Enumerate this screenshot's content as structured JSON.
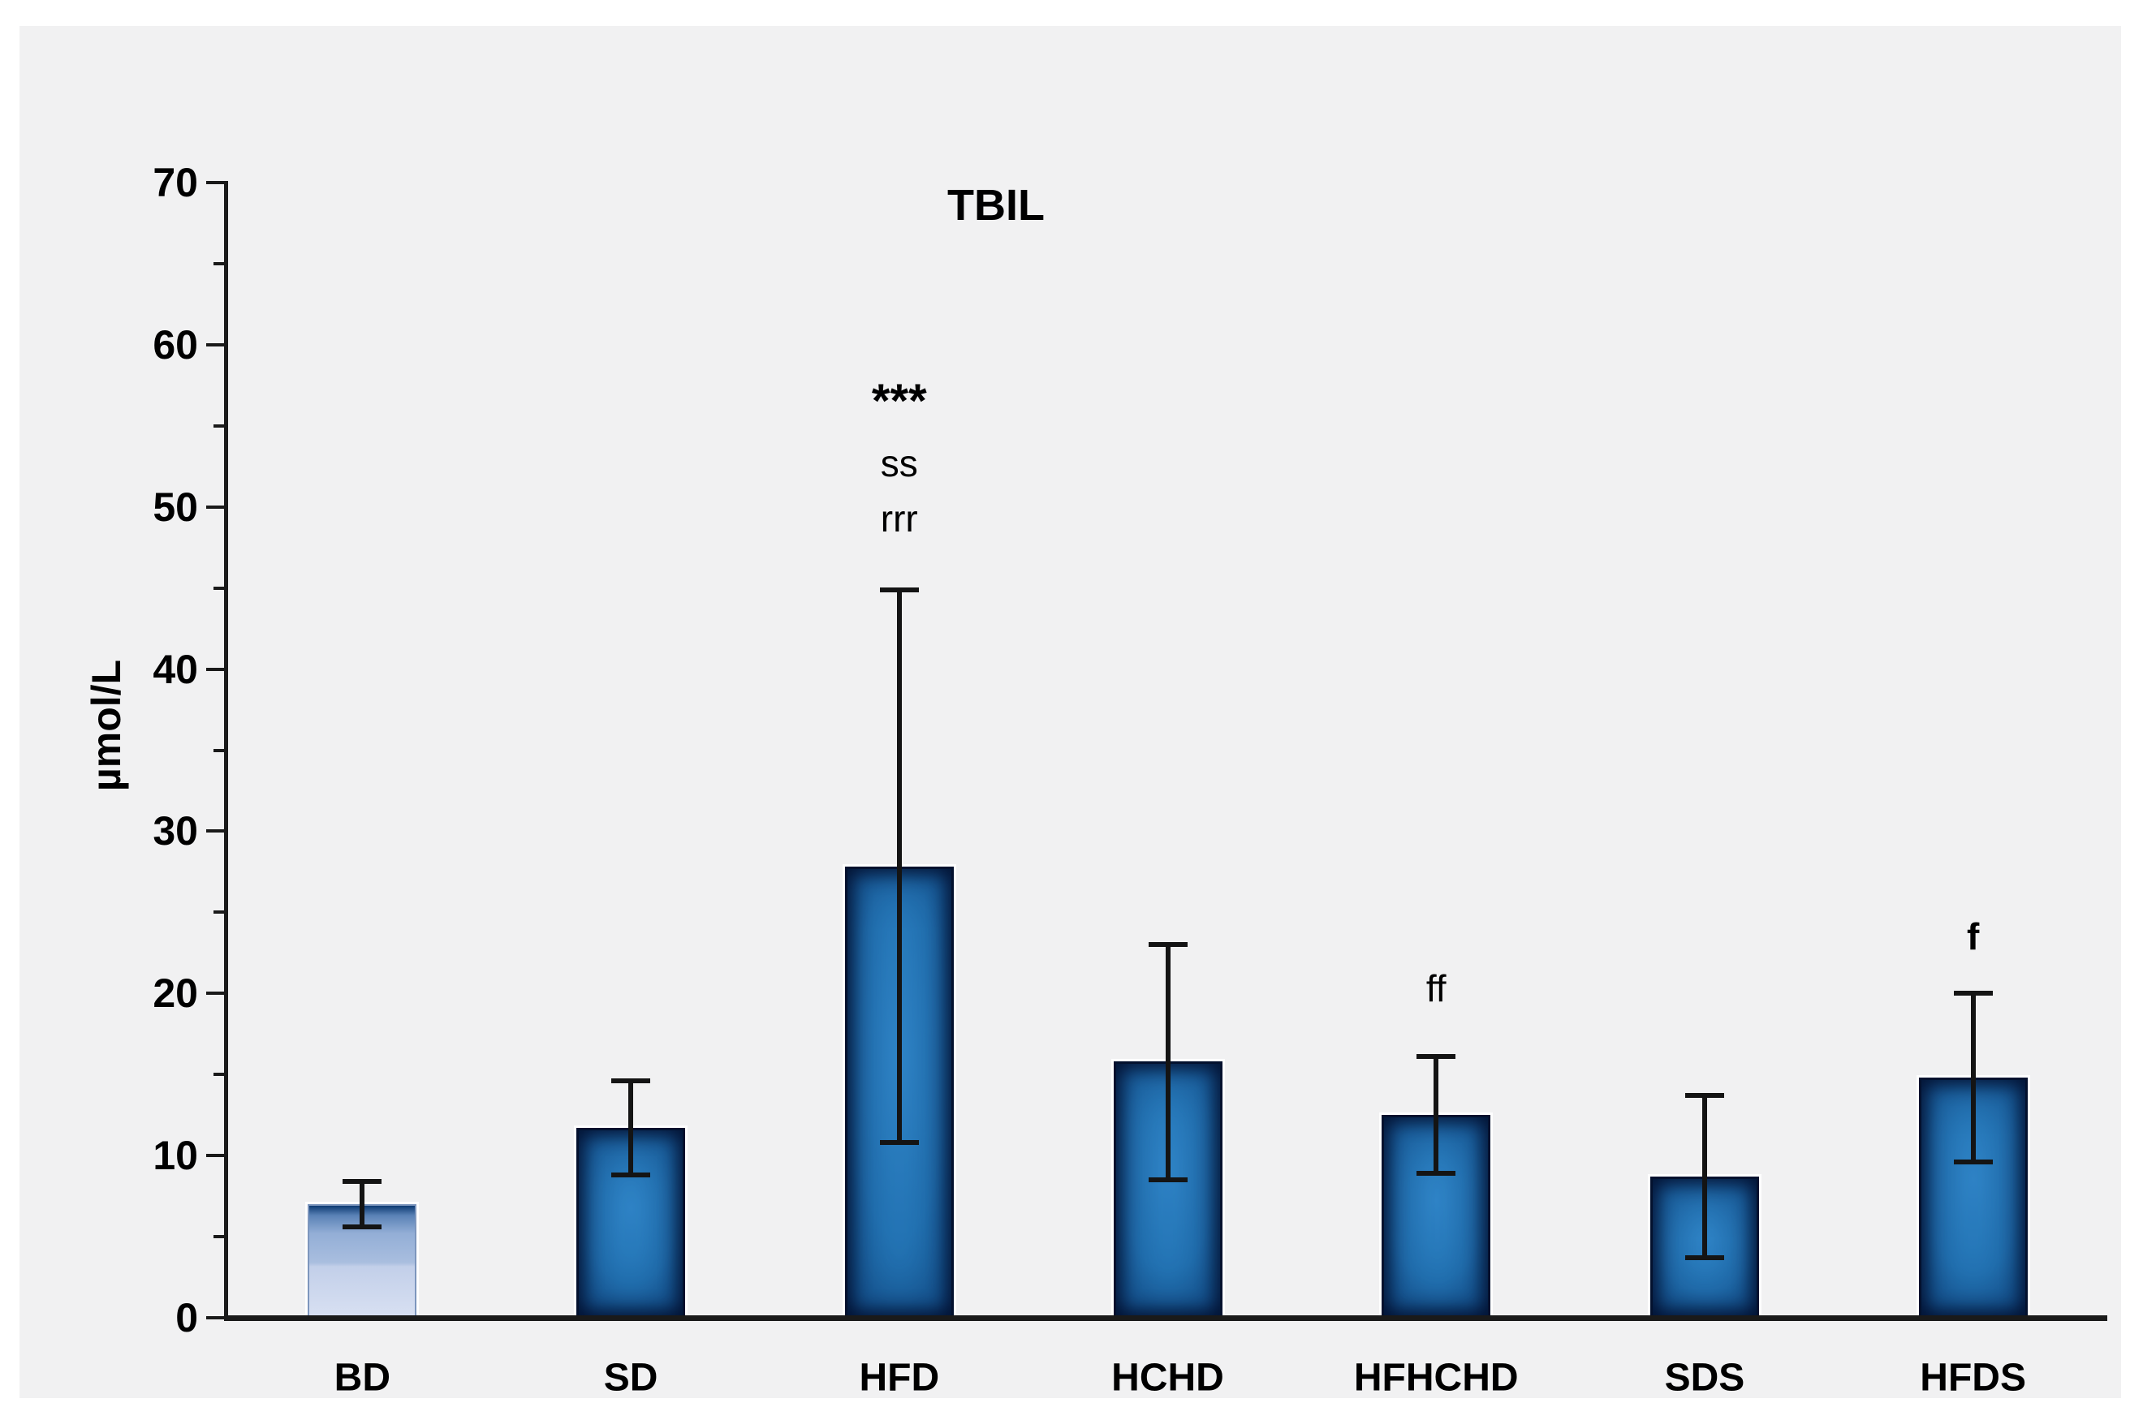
{
  "page": {
    "background": "#ffffff",
    "panel_background": "#f1f1f2"
  },
  "chart_data": {
    "type": "bar",
    "title": "TBIL",
    "ylabel": "µmol/L",
    "xlabel": "",
    "ylim": [
      0,
      70
    ],
    "yticks": [
      0,
      10,
      20,
      30,
      40,
      50,
      60,
      70
    ],
    "minor_yticks": [
      5,
      15,
      25,
      35,
      45,
      55,
      65
    ],
    "grid": false,
    "legend": false,
    "categories": [
      "BD",
      "SD",
      "HFD",
      "HCHD",
      "HFHCHD",
      "SDS",
      "HFDS"
    ],
    "values": [
      7.0,
      11.7,
      27.8,
      15.8,
      12.5,
      8.7,
      14.8
    ],
    "error_low": [
      5.6,
      8.8,
      10.8,
      8.5,
      8.9,
      3.7,
      9.6
    ],
    "error_high": [
      8.4,
      14.6,
      44.9,
      23.0,
      16.1,
      13.7,
      20.0
    ],
    "bar_color": "#2578b9",
    "bar_edge_color": "#03112e",
    "first_bar_gradient": [
      "#0d3a72",
      "#93aed6",
      "#d8e0f2"
    ],
    "annotations": [
      {
        "category_index": 2,
        "lines": [
          {
            "text": "***",
            "value": 56.5,
            "bold": true,
            "size": 58
          },
          {
            "text": "ss",
            "value": 52.7,
            "bold": false,
            "size": 46
          },
          {
            "text": "rrr",
            "value": 49.3,
            "bold": false,
            "size": 46
          }
        ]
      },
      {
        "category_index": 4,
        "lines": [
          {
            "text": "ff",
            "value": 20.3,
            "bold": false,
            "size": 46
          }
        ]
      },
      {
        "category_index": 6,
        "lines": [
          {
            "text": "f",
            "value": 23.5,
            "bold": true,
            "size": 46
          }
        ]
      }
    ]
  }
}
